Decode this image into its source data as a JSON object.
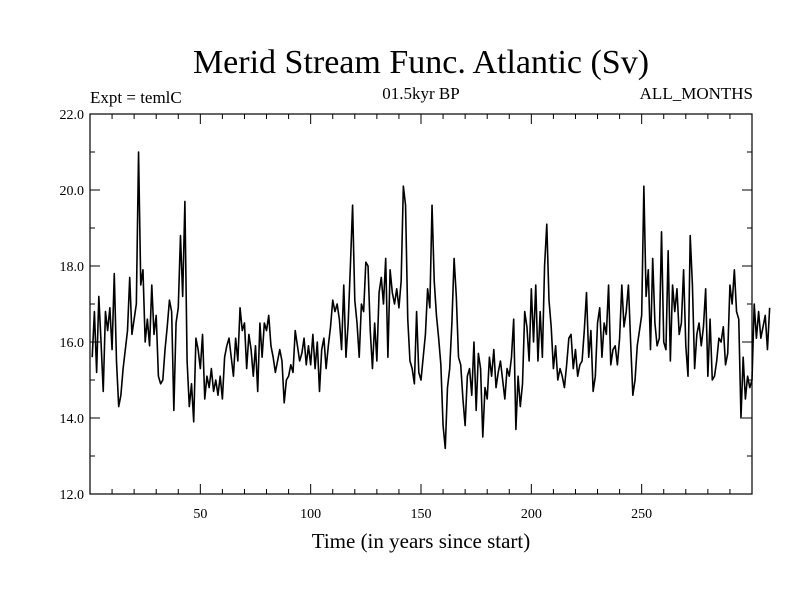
{
  "chart_data": {
    "type": "line",
    "title": "Merid Stream Func. Atlantic (Sv)",
    "subtitle_left": "Expt = temlC",
    "subtitle_center": "01.5kyr BP",
    "subtitle_right": "ALL_MONTHS",
    "xlabel": "Time (in years since start)",
    "ylabel": "",
    "xlim": [
      0,
      300
    ],
    "ylim": [
      12,
      22
    ],
    "xticks": [
      50,
      100,
      150,
      200,
      250
    ],
    "yticks": [
      12,
      14,
      16,
      18,
      20,
      22
    ],
    "ytick_labels": [
      "12.0",
      "14.0",
      "16.0",
      "18.0",
      "20.0",
      "22.0"
    ],
    "grid": false,
    "series": [
      {
        "name": "Merid Stream Func. Atlantic",
        "x_start": 1,
        "x_step": 1,
        "values": [
          15.6,
          16.8,
          15.2,
          17.2,
          16.0,
          14.7,
          16.8,
          16.3,
          16.9,
          15.8,
          17.8,
          15.5,
          14.3,
          14.6,
          15.3,
          15.8,
          16.3,
          17.7,
          16.2,
          16.6,
          17.0,
          21.0,
          17.5,
          17.9,
          16.0,
          16.6,
          15.9,
          17.5,
          16.2,
          16.7,
          15.1,
          14.9,
          15.0,
          15.8,
          16.4,
          17.1,
          16.8,
          14.2,
          16.5,
          16.9,
          18.8,
          17.2,
          19.7,
          15.5,
          14.3,
          14.9,
          13.9,
          16.1,
          15.8,
          15.3,
          16.2,
          14.5,
          15.1,
          14.8,
          15.3,
          14.7,
          15.0,
          14.6,
          15.1,
          14.5,
          15.6,
          15.9,
          16.1,
          15.6,
          15.1,
          16.1,
          15.5,
          16.9,
          16.3,
          16.5,
          15.3,
          16.2,
          15.8,
          15.1,
          15.9,
          14.7,
          16.5,
          15.6,
          16.5,
          16.3,
          16.7,
          15.9,
          15.6,
          15.2,
          15.5,
          15.8,
          15.5,
          14.4,
          15.0,
          15.1,
          15.4,
          15.2,
          16.3,
          15.9,
          15.5,
          15.7,
          16.1,
          15.4,
          15.9,
          15.4,
          16.2,
          15.3,
          16.0,
          14.7,
          15.8,
          16.1,
          15.3,
          15.9,
          16.4,
          17.1,
          16.8,
          17.0,
          16.6,
          15.8,
          17.5,
          15.6,
          16.5,
          18.0,
          19.6,
          17.1,
          16.5,
          15.6,
          17.0,
          16.8,
          18.1,
          18.0,
          16.3,
          15.3,
          16.5,
          15.5,
          17.3,
          17.7,
          17.0,
          18.2,
          15.6,
          17.9,
          17.3,
          17.0,
          17.4,
          16.9,
          17.6,
          20.1,
          19.6,
          16.6,
          15.5,
          15.3,
          14.9,
          16.8,
          15.2,
          15.0,
          15.6,
          16.2,
          17.4,
          16.9,
          19.6,
          17.6,
          16.7,
          16.1,
          15.4,
          13.8,
          13.2,
          14.8,
          15.3,
          16.5,
          18.2,
          17.2,
          15.6,
          15.4,
          14.5,
          13.8,
          15.1,
          15.3,
          14.6,
          16.0,
          14.2,
          15.7,
          15.3,
          13.5,
          14.8,
          14.5,
          15.6,
          15.1,
          15.8,
          14.8,
          15.2,
          15.5,
          15.0,
          14.5,
          15.3,
          15.1,
          15.6,
          16.6,
          13.7,
          15.1,
          14.3,
          14.9,
          16.8,
          16.4,
          15.5,
          17.4,
          16.0,
          17.5,
          15.5,
          16.8,
          15.6,
          18.0,
          19.1,
          17.1,
          16.4,
          15.3,
          15.9,
          15.0,
          15.3,
          15.1,
          14.8,
          15.4,
          16.1,
          16.2,
          15.3,
          15.8,
          15.1,
          15.4,
          15.5,
          16.3,
          17.3,
          15.6,
          16.3,
          14.7,
          15.1,
          16.5,
          16.9,
          15.6,
          16.5,
          16.2,
          17.5,
          15.4,
          15.8,
          15.9,
          15.4,
          16.1,
          17.5,
          16.4,
          16.8,
          17.5,
          16.0,
          14.6,
          15.0,
          15.9,
          16.3,
          16.7,
          20.1,
          17.2,
          17.9,
          15.8,
          18.2,
          16.5,
          15.9,
          16.1,
          18.9,
          16.0,
          15.8,
          18.4,
          15.5,
          17.5,
          16.8,
          17.4,
          16.2,
          16.5,
          17.9,
          15.9,
          15.1,
          18.8,
          17.5,
          15.3,
          16.2,
          16.5,
          15.9,
          16.4,
          17.4,
          15.1,
          16.6,
          15.0,
          15.1,
          15.5,
          16.1,
          16.0,
          16.4,
          15.4,
          15.7,
          17.5,
          17.0,
          17.9,
          16.8,
          16.6,
          14.0,
          15.6,
          14.5,
          15.1,
          14.8,
          15.0,
          17.0,
          16.1,
          16.8,
          16.1,
          16.4,
          16.7,
          15.8,
          16.9
        ]
      }
    ]
  }
}
